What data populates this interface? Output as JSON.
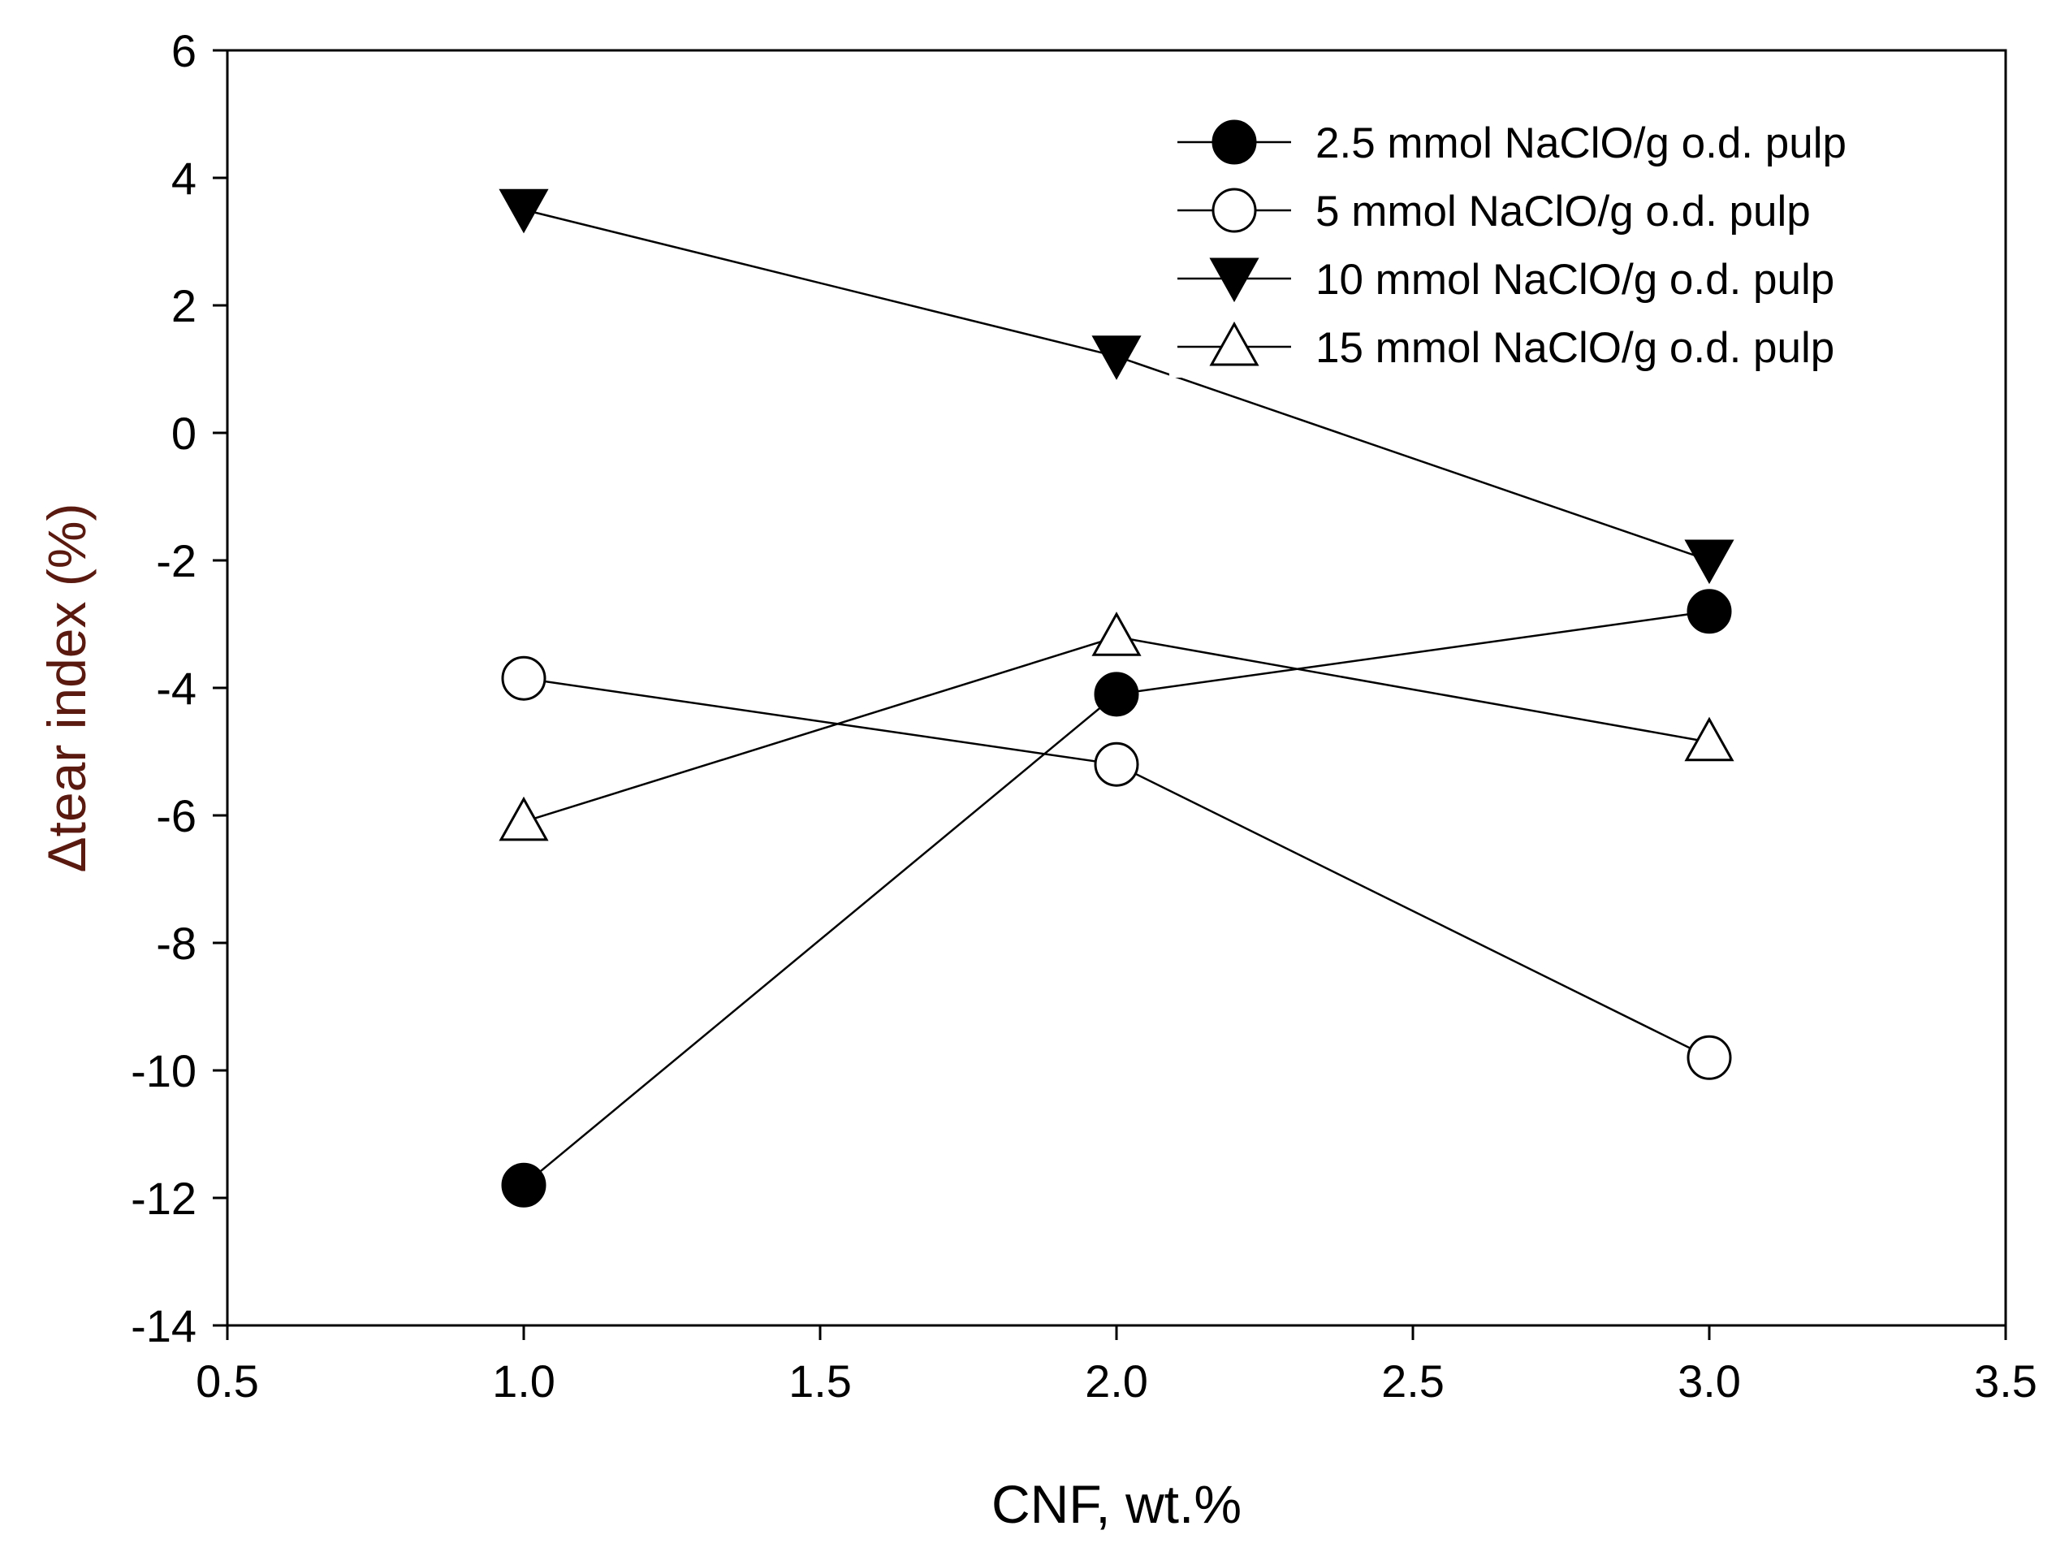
{
  "chart_data": {
    "type": "line",
    "title": "",
    "xlabel": "CNF, wt.%",
    "ylabel": "Δtear index (%)",
    "xlim": [
      0.5,
      3.5
    ],
    "ylim": [
      -14,
      6
    ],
    "x_ticks": [
      "0.5",
      "1.0",
      "1.5",
      "2.0",
      "2.5",
      "3.0",
      "3.5"
    ],
    "y_ticks": [
      "-14",
      "-12",
      "-10",
      "-8",
      "-6",
      "-4",
      "-2",
      "0",
      "2",
      "4",
      "6"
    ],
    "grid": false,
    "legend_position": "top-right",
    "x": [
      1.0,
      2.0,
      3.0
    ],
    "series": [
      {
        "name": "2.5 mmol NaClO/g o.d. pulp",
        "marker": "filled-circle",
        "values": [
          -11.8,
          -4.1,
          -2.8
        ]
      },
      {
        "name": "5 mmol NaClO/g o.d. pulp",
        "marker": "open-circle",
        "values": [
          -3.85,
          -5.2,
          -9.8
        ]
      },
      {
        "name": "10 mmol NaClO/g o.d. pulp",
        "marker": "filled-triangle-down",
        "values": [
          3.5,
          1.2,
          -2.0
        ]
      },
      {
        "name": "15 mmol NaClO/g o.d. pulp",
        "marker": "open-triangle-up",
        "values": [
          -6.1,
          -3.2,
          -4.85
        ]
      }
    ],
    "colors": {
      "line": "#000000",
      "marker_stroke": "#000000",
      "marker_fill_solid": "#000000",
      "marker_fill_open": "#ffffff",
      "axis_title": "#5a1a10"
    }
  }
}
